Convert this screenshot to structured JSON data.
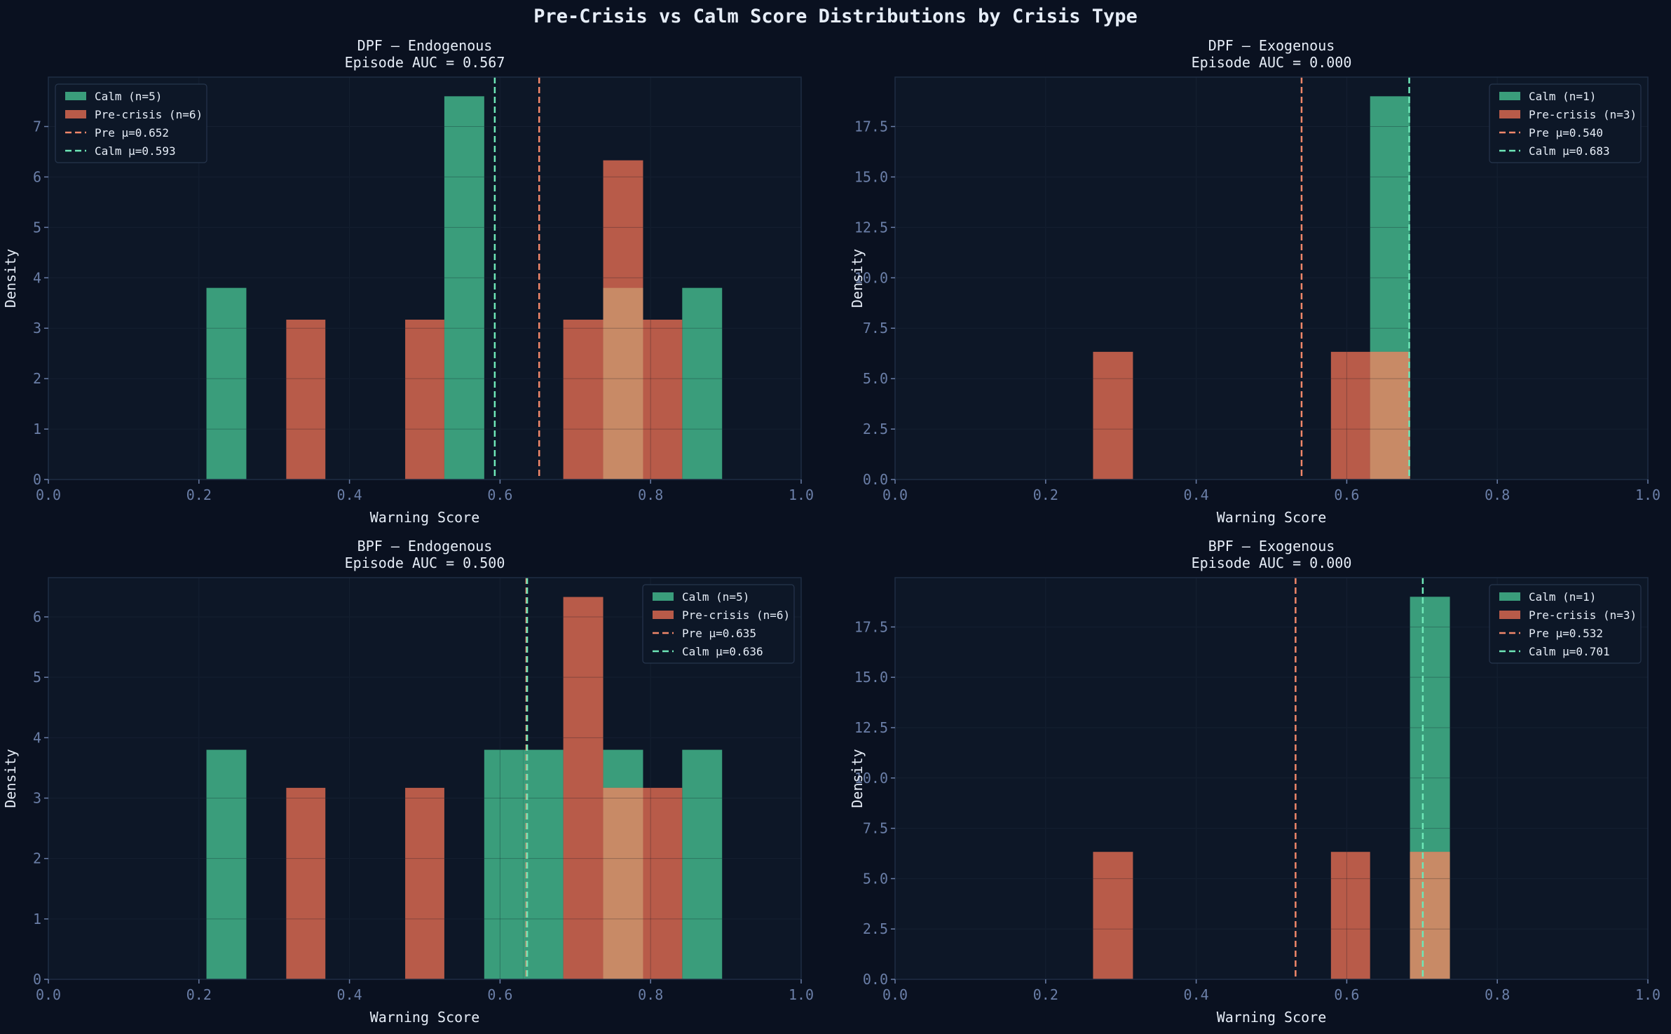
{
  "figure": {
    "title": "Pre-Crisis vs Calm Score Distributions by Crisis Type",
    "colors": {
      "background": "#0a1120",
      "panel": "#0d1727",
      "calm": "#3a9d7b",
      "precrisis": "#b85b49",
      "overlap": "#c88a66",
      "calm_line": "#6ee7b7",
      "pre_line": "#f0876a",
      "tick": "#6b7fa8",
      "text": "#e6edf7"
    }
  },
  "chart_data": [
    {
      "type": "bar",
      "title_line1": "DPF — Endogenous",
      "title_line2": "Episode AUC = 0.567",
      "xlabel": "Warning Score",
      "ylabel": "Density",
      "xlim": [
        0,
        1
      ],
      "ylim": [
        0,
        7.98
      ],
      "xticks": [
        "0.0",
        "0.2",
        "0.4",
        "0.6",
        "0.8",
        "1.0"
      ],
      "yticks": [
        "0",
        "1",
        "2",
        "3",
        "4",
        "5",
        "6",
        "7"
      ],
      "ytick_values": [
        0,
        1,
        2,
        3,
        4,
        5,
        6,
        7
      ],
      "legend_position": "upper left",
      "series": [
        {
          "name": "Calm (n=5)",
          "kind": "calm",
          "bins": [
            [
              0.21,
              0.263,
              3.8
            ],
            [
              0.526,
              0.579,
              7.6
            ],
            [
              0.842,
              0.895,
              3.8
            ],
            [
              0.737,
              0.79,
              3.8
            ]
          ]
        },
        {
          "name": "Pre-crisis (n=6)",
          "kind": "pre",
          "bins": [
            [
              0.316,
              0.368,
              3.17
            ],
            [
              0.474,
              0.526,
              3.17
            ],
            [
              0.684,
              0.737,
              3.17
            ],
            [
              0.737,
              0.79,
              6.33
            ],
            [
              0.79,
              0.842,
              3.17
            ]
          ]
        }
      ],
      "overlap_bins": [
        [
          0.737,
          0.79,
          3.8
        ]
      ],
      "lines": [
        {
          "name": "Pre μ=0.652",
          "kind": "pre",
          "x": 0.652
        },
        {
          "name": "Calm μ=0.593",
          "kind": "calm",
          "x": 0.593
        }
      ]
    },
    {
      "type": "bar",
      "title_line1": "DPF — Exogenous",
      "title_line2": "Episode AUC = 0.000",
      "xlabel": "Warning Score",
      "ylabel": "Density",
      "xlim": [
        0,
        1
      ],
      "ylim": [
        0,
        19.95
      ],
      "xticks": [
        "0.0",
        "0.2",
        "0.4",
        "0.6",
        "0.8",
        "1.0"
      ],
      "yticks": [
        "0.0",
        "2.5",
        "5.0",
        "7.5",
        "10.0",
        "12.5",
        "15.0",
        "17.5"
      ],
      "ytick_values": [
        0,
        2.5,
        5,
        7.5,
        10,
        12.5,
        15,
        17.5
      ],
      "legend_position": "upper right",
      "series": [
        {
          "name": "Calm (n=1)",
          "kind": "calm",
          "bins": [
            [
              0.631,
              0.684,
              19.0
            ]
          ]
        },
        {
          "name": "Pre-crisis (n=3)",
          "kind": "pre",
          "bins": [
            [
              0.263,
              0.316,
              6.33
            ],
            [
              0.579,
              0.631,
              6.33
            ],
            [
              0.631,
              0.684,
              6.33
            ]
          ]
        }
      ],
      "overlap_bins": [
        [
          0.631,
          0.684,
          6.33
        ]
      ],
      "lines": [
        {
          "name": "Pre μ=0.540",
          "kind": "pre",
          "x": 0.54
        },
        {
          "name": "Calm μ=0.683",
          "kind": "calm",
          "x": 0.683
        }
      ]
    },
    {
      "type": "bar",
      "title_line1": "BPF — Endogenous",
      "title_line2": "Episode AUC = 0.500",
      "xlabel": "Warning Score",
      "ylabel": "Density",
      "xlim": [
        0,
        1
      ],
      "ylim": [
        0,
        6.65
      ],
      "xticks": [
        "0.0",
        "0.2",
        "0.4",
        "0.6",
        "0.8",
        "1.0"
      ],
      "yticks": [
        "0",
        "1",
        "2",
        "3",
        "4",
        "5",
        "6"
      ],
      "ytick_values": [
        0,
        1,
        2,
        3,
        4,
        5,
        6
      ],
      "legend_position": "upper right",
      "series": [
        {
          "name": "Calm (n=5)",
          "kind": "calm",
          "bins": [
            [
              0.21,
              0.263,
              3.8
            ],
            [
              0.579,
              0.631,
              3.8
            ],
            [
              0.631,
              0.684,
              3.8
            ],
            [
              0.737,
              0.79,
              3.8
            ],
            [
              0.842,
              0.895,
              3.8
            ]
          ]
        },
        {
          "name": "Pre-crisis (n=6)",
          "kind": "pre",
          "bins": [
            [
              0.316,
              0.368,
              3.17
            ],
            [
              0.474,
              0.526,
              3.17
            ],
            [
              0.684,
              0.737,
              6.33
            ],
            [
              0.737,
              0.79,
              3.17
            ],
            [
              0.79,
              0.842,
              3.17
            ]
          ]
        }
      ],
      "overlap_bins": [
        [
          0.737,
          0.79,
          3.17
        ]
      ],
      "lines": [
        {
          "name": "Pre μ=0.635",
          "kind": "pre",
          "x": 0.635
        },
        {
          "name": "Calm μ=0.636",
          "kind": "calm",
          "x": 0.636
        }
      ]
    },
    {
      "type": "bar",
      "title_line1": "BPF — Exogenous",
      "title_line2": "Episode AUC = 0.000",
      "xlabel": "Warning Score",
      "ylabel": "Density",
      "xlim": [
        0,
        1
      ],
      "ylim": [
        0,
        19.95
      ],
      "xticks": [
        "0.0",
        "0.2",
        "0.4",
        "0.6",
        "0.8",
        "1.0"
      ],
      "yticks": [
        "0.0",
        "2.5",
        "5.0",
        "7.5",
        "10.0",
        "12.5",
        "15.0",
        "17.5"
      ],
      "ytick_values": [
        0,
        2.5,
        5,
        7.5,
        10,
        12.5,
        15,
        17.5
      ],
      "legend_position": "upper right",
      "series": [
        {
          "name": "Calm (n=1)",
          "kind": "calm",
          "bins": [
            [
              0.684,
              0.737,
              19.0
            ]
          ]
        },
        {
          "name": "Pre-crisis (n=3)",
          "kind": "pre",
          "bins": [
            [
              0.263,
              0.316,
              6.33
            ],
            [
              0.579,
              0.631,
              6.33
            ],
            [
              0.684,
              0.737,
              6.33
            ]
          ]
        }
      ],
      "overlap_bins": [
        [
          0.684,
          0.737,
          6.33
        ]
      ],
      "lines": [
        {
          "name": "Pre μ=0.532",
          "kind": "pre",
          "x": 0.532
        },
        {
          "name": "Calm μ=0.701",
          "kind": "calm",
          "x": 0.701
        }
      ]
    }
  ]
}
